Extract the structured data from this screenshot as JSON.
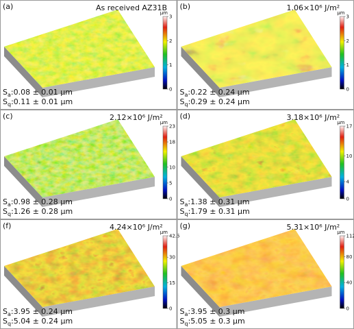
{
  "panels": [
    {
      "label": "(a)",
      "title": "As received AZ31B",
      "unit": "μm",
      "colorbar_ticks": [
        0,
        1,
        2,
        3
      ],
      "roughness": [
        {
          "symbol": "S",
          "sub": "a",
          "text": ":0.08 ± 0.01 μm"
        },
        {
          "symbol": "S",
          "sub": "q",
          "text": ":0.11 ± 0.01 μm"
        }
      ]
    },
    {
      "label": "(b)",
      "title": "1.06×10⁶ J/m²",
      "unit": "μm",
      "colorbar_ticks": [
        0,
        1,
        2,
        3
      ],
      "roughness": [
        {
          "symbol": "S",
          "sub": "a",
          "text": ":0.22 ± 0.24 μm"
        },
        {
          "symbol": "S",
          "sub": "q",
          "text": ":0.29 ± 0.24 μm"
        }
      ]
    },
    {
      "label": "(c)",
      "title": "2.12×10⁶ J/m²",
      "unit": "μm",
      "colorbar_ticks": [
        0,
        5,
        10,
        18,
        23
      ],
      "roughness": [
        {
          "symbol": "S",
          "sub": "a",
          "text": ":0.98 ± 0.28 μm"
        },
        {
          "symbol": "S",
          "sub": "q",
          "text": ":1.26 ± 0.28 μm"
        }
      ]
    },
    {
      "label": "(d)",
      "title": "3.18×10⁶ J/m²",
      "unit": "μm",
      "colorbar_ticks": [
        0,
        4,
        10,
        17
      ],
      "roughness": [
        {
          "symbol": "S",
          "sub": "a",
          "text": ":1.38 ± 0.31 μm"
        },
        {
          "symbol": "S",
          "sub": "q",
          "text": ":1.79 ± 0.31 μm"
        }
      ]
    },
    {
      "label": "(f)",
      "title": "4.24×10⁶ J/m²",
      "unit": "μm",
      "colorbar_ticks": [
        0,
        15,
        30,
        42.5
      ],
      "roughness": [
        {
          "symbol": "S",
          "sub": "a",
          "text": ":3.95 ± 0.24 μm"
        },
        {
          "symbol": "S",
          "sub": "q",
          "text": ":5.04 ± 0.24 μm"
        }
      ]
    },
    {
      "label": "(g)",
      "title": "5.31×10⁶ J/m²",
      "unit": "μm",
      "colorbar_ticks": [
        0,
        40,
        80,
        112
      ],
      "roughness": [
        {
          "symbol": "S",
          "sub": "a",
          "text": ":3.95 ± 0.3 μm"
        },
        {
          "symbol": "S",
          "sub": "q",
          "text": ":5.05 ± 0.3 μm"
        }
      ]
    }
  ]
}
